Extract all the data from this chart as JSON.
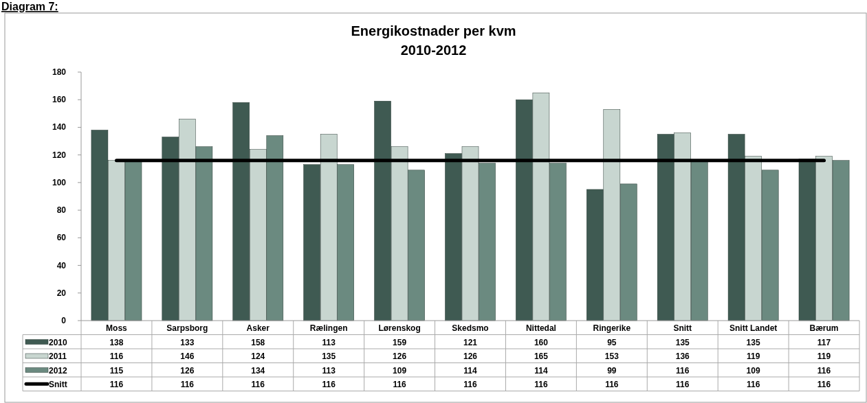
{
  "chart_data": {
    "type": "bar",
    "title": "Energikostnader per kvm\n2010-2012",
    "annotations": [
      "Diagram 7:"
    ],
    "categories": [
      "Moss",
      "Sarpsborg",
      "Asker",
      "Rælingen",
      "Lørenskog",
      "Skedsmo",
      "Nittedal",
      "Ringerike",
      "Snitt",
      "Snitt Landet",
      "Bærum"
    ],
    "series": [
      {
        "name": "2010",
        "color": "#3f5a52",
        "values": [
          138,
          133,
          158,
          113,
          159,
          121,
          160,
          95,
          135,
          135,
          117
        ]
      },
      {
        "name": "2011",
        "color": "#c8d6d0",
        "values": [
          116,
          146,
          124,
          135,
          126,
          126,
          165,
          153,
          136,
          119,
          119
        ]
      },
      {
        "name": "2012",
        "color": "#6b8a80",
        "values": [
          115,
          126,
          134,
          113,
          109,
          114,
          114,
          99,
          116,
          109,
          116
        ]
      },
      {
        "name": "Snitt",
        "type": "line",
        "color": "#000000",
        "values": [
          116,
          116,
          116,
          116,
          116,
          116,
          116,
          116,
          116,
          116,
          116
        ]
      }
    ],
    "ylim": [
      0,
      180
    ],
    "yticks": [
      0,
      20,
      40,
      60,
      80,
      100,
      120,
      140,
      160,
      180
    ],
    "grid": false,
    "legend": "bottom",
    "data_labels": true,
    "marker": "none",
    "line_style": "solid"
  }
}
